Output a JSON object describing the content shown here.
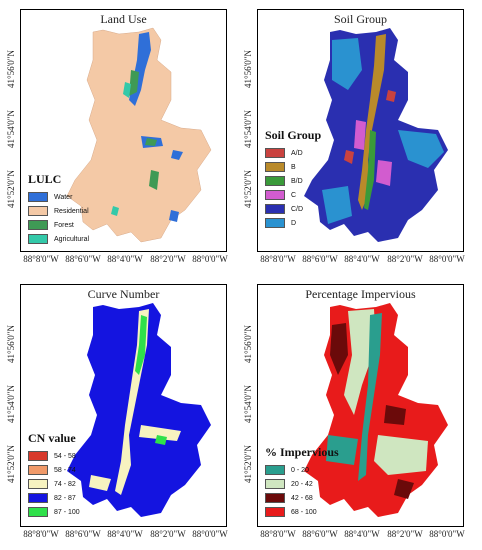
{
  "panels": [
    {
      "title": "Land Use",
      "legend_title": "LULC",
      "legend": [
        {
          "label": "Water",
          "color": "#2f6fd8"
        },
        {
          "label": "Residential",
          "color": "#f4c9a6"
        },
        {
          "label": "Forest",
          "color": "#3f9a55"
        },
        {
          "label": "Agricultural",
          "color": "#33c9a9"
        }
      ]
    },
    {
      "title": "Soil Group",
      "legend_title": "Soil Group",
      "legend": [
        {
          "label": "A/D",
          "color": "#c9423f"
        },
        {
          "label": "B",
          "color": "#b98a2a"
        },
        {
          "label": "B/D",
          "color": "#3a9a3a"
        },
        {
          "label": "C",
          "color": "#d25ccf"
        },
        {
          "label": "C/D",
          "color": "#2a2fb0"
        },
        {
          "label": "D",
          "color": "#2a92d0"
        }
      ]
    },
    {
      "title": "Curve Number",
      "legend_title": "CN value",
      "legend": [
        {
          "label": "54 - 58",
          "color": "#d8392b"
        },
        {
          "label": "58 - 74",
          "color": "#f09a6a"
        },
        {
          "label": "74 - 82",
          "color": "#f7f3c0"
        },
        {
          "label": "82 - 87",
          "color": "#1414e0"
        },
        {
          "label": "87 - 100",
          "color": "#2fe04a"
        }
      ]
    },
    {
      "title": "Percentage Impervious",
      "legend_title": "% Impervious",
      "legend": [
        {
          "label": "0 - 20",
          "color": "#2a9e8e"
        },
        {
          "label": "20 - 42",
          "color": "#cfe6c0"
        },
        {
          "label": "42 - 68",
          "color": "#6b0a0a"
        },
        {
          "label": "68 - 100",
          "color": "#e81b1b"
        }
      ]
    }
  ],
  "x_ticks": [
    "88°8'0\"W",
    "88°6'0\"W",
    "88°4'0\"W",
    "88°2'0\"W",
    "88°0'0\"W"
  ],
  "y_ticks": [
    "41°56'0\"N",
    "41°54'0\"N",
    "41°52'0\"N"
  ]
}
